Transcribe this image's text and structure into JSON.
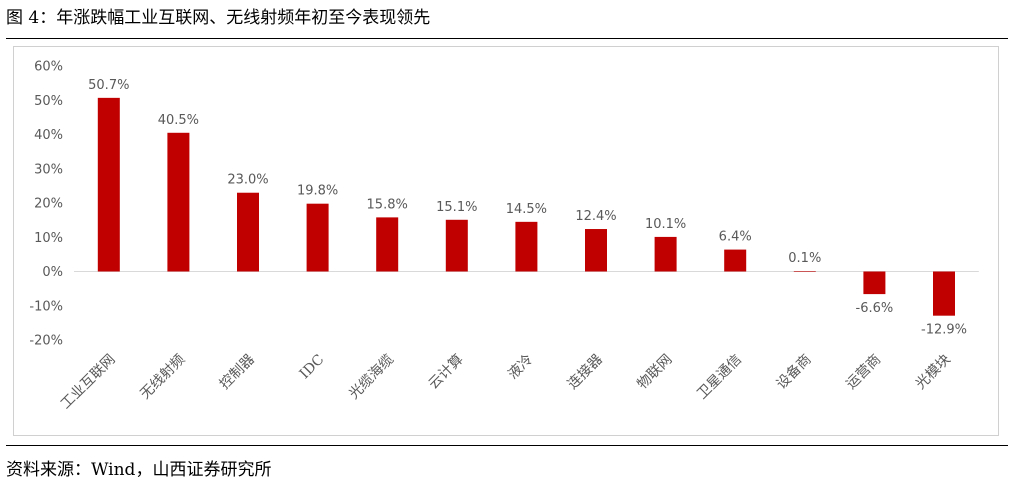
{
  "figure_title": "图 4：年涨跌幅工业互联网、无线射频年初至今表现领先",
  "source_note": "资料来源：Wind，山西证券研究所",
  "colors": {
    "bar": "#c00000",
    "axis": "#d9d9d9",
    "text": "#595959"
  },
  "chart_data": {
    "type": "bar",
    "title": "",
    "xlabel": "",
    "ylabel": "",
    "categories": [
      "工业互联网",
      "无线射频",
      "控制器",
      "IDC",
      "光缆海缆",
      "云计算",
      "液冷",
      "连接器",
      "物联网",
      "卫星通信",
      "设备商",
      "运营商",
      "光模块"
    ],
    "values": [
      50.7,
      40.5,
      23.0,
      19.8,
      15.8,
      15.1,
      14.5,
      12.4,
      10.1,
      6.4,
      0.1,
      -6.6,
      -12.9
    ],
    "value_labels": [
      "50.7%",
      "40.5%",
      "23.0%",
      "19.8%",
      "15.8%",
      "15.1%",
      "14.5%",
      "12.4%",
      "10.1%",
      "6.4%",
      "0.1%",
      "-6.6%",
      "-12.9%"
    ],
    "ylim": [
      -20,
      60
    ],
    "yticks": [
      60,
      50,
      40,
      30,
      20,
      10,
      0,
      -10,
      -20
    ],
    "ytick_labels": [
      "60%",
      "50%",
      "40%",
      "30%",
      "20%",
      "10%",
      "0%",
      "-10%",
      "-20%"
    ],
    "grid": false,
    "legend": "none"
  }
}
